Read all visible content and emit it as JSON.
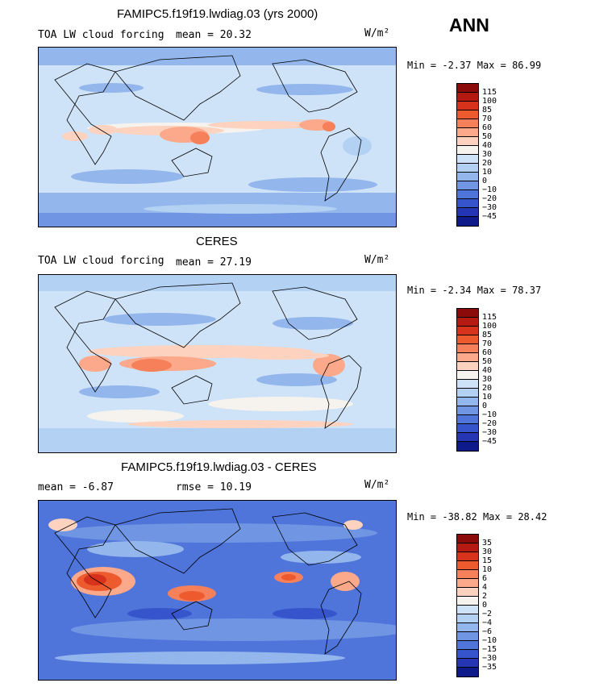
{
  "season": "ANN",
  "units": "W/m²",
  "colors": {
    "scale": [
      "#8b0a0a",
      "#b51a12",
      "#d6321c",
      "#ec5a2e",
      "#f6805a",
      "#fba98a",
      "#fdd2bf",
      "#f6f2ee",
      "#cfe3f8",
      "#b3d1f3",
      "#93b6ec",
      "#6f95e3",
      "#4f74da",
      "#3655cc",
      "#2536b4",
      "#0f1a8a"
    ]
  },
  "chart_data": [
    {
      "type": "heatmap",
      "title": "FAMIPC5.f19f19.lwdiag.03 (yrs 2000)",
      "variable": "TOA LW cloud forcing",
      "stat_label": "mean =",
      "stat_value": "20.32",
      "units": "W/m²",
      "min_label": "Min =",
      "min": "-2.37",
      "max_label": "Max =",
      "max": "86.99",
      "levels": [
        "115",
        "100",
        "85",
        "70",
        "60",
        "50",
        "40",
        "30",
        "20",
        "10",
        "0",
        "−10",
        "−20",
        "−30",
        "−45"
      ],
      "xlabel": "",
      "ylabel": "",
      "lon_range": [
        0,
        360
      ],
      "lat_range": [
        -90,
        90
      ]
    },
    {
      "type": "heatmap",
      "title": "CERES",
      "variable": "TOA LW cloud forcing",
      "stat_label": "mean =",
      "stat_value": "27.19",
      "units": "W/m²",
      "min_label": "Min =",
      "min": "-2.34",
      "max_label": "Max =",
      "max": "78.37",
      "levels": [
        "115",
        "100",
        "85",
        "70",
        "60",
        "50",
        "40",
        "30",
        "20",
        "10",
        "0",
        "−10",
        "−20",
        "−30",
        "−45"
      ],
      "xlabel": "",
      "ylabel": "",
      "lon_range": [
        0,
        360
      ],
      "lat_range": [
        -90,
        90
      ]
    },
    {
      "type": "heatmap",
      "title": "FAMIPC5.f19f19.lwdiag.03 - CERES",
      "variable": "",
      "stat_label": "mean =",
      "stat_value": "-6.87",
      "rmse_label": "rmse =",
      "rmse_value": "10.19",
      "units": "W/m²",
      "min_label": "Min =",
      "min": "-38.82",
      "max_label": "Max =",
      "max": "28.42",
      "levels": [
        "35",
        "30",
        "15",
        "10",
        "6",
        "4",
        "2",
        "0",
        "−2",
        "−4",
        "−6",
        "−10",
        "−15",
        "−30",
        "−35"
      ],
      "xlabel": "",
      "ylabel": "",
      "lon_range": [
        0,
        360
      ],
      "lat_range": [
        -90,
        90
      ]
    }
  ]
}
